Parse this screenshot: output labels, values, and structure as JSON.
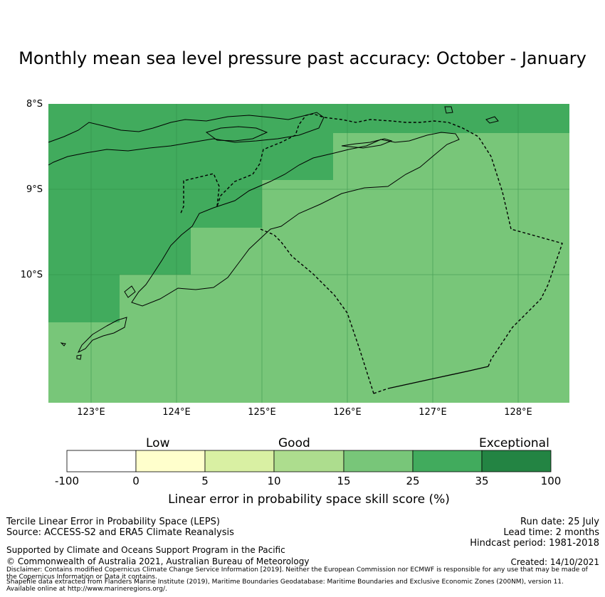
{
  "title": "Monthly mean sea level pressure past accuracy: October - January",
  "map": {
    "lat_labels": [
      "8°S",
      "9°S",
      "10°S"
    ],
    "lon_labels": [
      "123°E",
      "124°E",
      "125°E",
      "126°E",
      "127°E",
      "128°E"
    ],
    "lat_range": [
      "8°S",
      "11.5°S"
    ],
    "lon_range": [
      "122.5°E",
      "128.6°E"
    ],
    "colors": {
      "skill_35_100": "#41ab5d",
      "skill_25_35": "#78c679",
      "eez_boundary": "#000000"
    }
  },
  "colorbar": {
    "categories": [
      "Low",
      "Good",
      "Exceptional"
    ],
    "ticks": [
      "-100",
      "0",
      "5",
      "10",
      "15",
      "25",
      "35",
      "100"
    ],
    "colors": [
      "#ffffff",
      "#ffffcc",
      "#d9f0a3",
      "#addd8e",
      "#78c679",
      "#41ab5d",
      "#238443"
    ],
    "label": "Linear error in probability space skill score (%)"
  },
  "footer": {
    "left_line1": "Tercile Linear Error in Probability Space (LEPS)",
    "left_line2": "Source: ACCESS-S2 and ERA5 Climate Reanalysis",
    "right_line1": "Run date: 25 July",
    "right_line2": "Lead time: 2 months",
    "right_line3": "Hindcast period: 1981-2018",
    "support": "Supported by Climate and Oceans Support Program in the Pacific",
    "copyright": "© Commonwealth of Australia 2021, Australian Bureau of Meteorology",
    "created": "Created: 14/10/2021",
    "disclaimer1": "Disclaimer: Contains modified Copernicus Climate Change Service Information [2019]. Neither the European Commission nor ECMWF is responsible for any use that may be made of",
    "disclaimer2": "the Copernicus Information or Data it contains.",
    "shapefile1": "Shapefile data extracted from Flanders Marine Institute (2019), Maritime Boundaries Geodatabase: Maritime Boundaries and Exclusive Economic Zones (200NM), version 11.",
    "shapefile2": "Available online at http://www.marineregions.org/."
  }
}
